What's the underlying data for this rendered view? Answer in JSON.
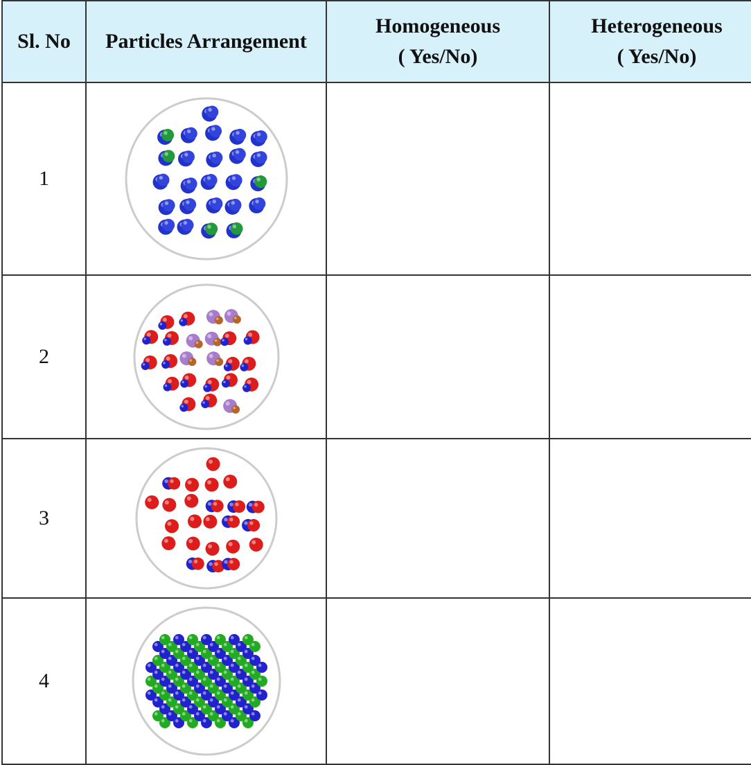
{
  "table": {
    "header": [
      "Sl. No",
      "Particles Arrangement",
      [
        "Homogeneous",
        "( Yes/No)"
      ],
      [
        "Heterogeneous",
        "( Yes/No)"
      ]
    ],
    "rows": [
      1,
      2,
      3,
      4
    ]
  }
}
